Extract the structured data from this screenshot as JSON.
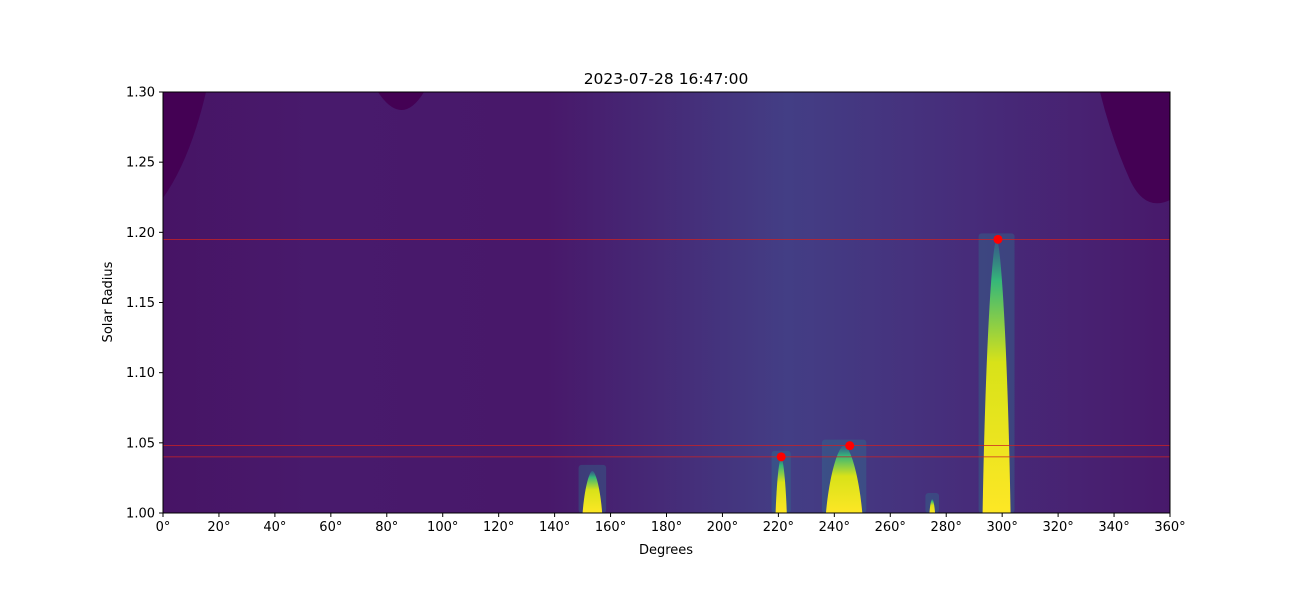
{
  "chart_data": {
    "type": "heatmap",
    "title": "2023-07-28 16:47:00",
    "xlabel": "Degrees",
    "ylabel": "Solar Radius",
    "xlim": [
      0,
      360
    ],
    "ylim": [
      1.0,
      1.3
    ],
    "x_ticks": [
      0,
      20,
      40,
      60,
      80,
      100,
      120,
      140,
      160,
      180,
      200,
      220,
      240,
      260,
      280,
      300,
      320,
      340,
      360
    ],
    "x_tick_labels": [
      "0°",
      "20°",
      "40°",
      "60°",
      "80°",
      "100°",
      "120°",
      "140°",
      "160°",
      "180°",
      "200°",
      "220°",
      "240°",
      "260°",
      "280°",
      "300°",
      "320°",
      "340°",
      "360°"
    ],
    "y_ticks": [
      1.0,
      1.05,
      1.1,
      1.15,
      1.2,
      1.25,
      1.3
    ],
    "y_tick_labels": [
      "1.00",
      "1.05",
      "1.10",
      "1.15",
      "1.20",
      "1.25",
      "1.30"
    ],
    "colormap": "viridis",
    "colors": {
      "marker": "#ff0000",
      "hline": "#cc2222",
      "low": "#440154",
      "mid": "#46337e",
      "high": "#fde725"
    },
    "bright_features": [
      {
        "x_start": 150,
        "x_end": 157,
        "r_top": 1.03
      },
      {
        "x_start": 219,
        "x_end": 223,
        "r_top": 1.04
      },
      {
        "x_start": 237,
        "x_end": 250,
        "r_top": 1.048
      },
      {
        "x_start": 293,
        "x_end": 303,
        "r_top": 1.195
      },
      {
        "x_start": 274,
        "x_end": 276,
        "r_top": 1.01
      }
    ],
    "markers": [
      {
        "x": 221,
        "y": 1.04
      },
      {
        "x": 245.5,
        "y": 1.048
      },
      {
        "x": 298.5,
        "y": 1.195
      }
    ],
    "hlines": [
      1.04,
      1.048,
      1.195
    ]
  }
}
